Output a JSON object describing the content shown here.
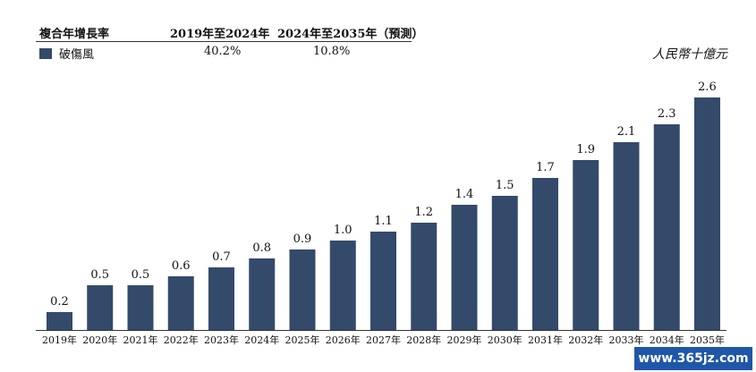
{
  "table": {
    "headers": [
      "複合年增長率",
      "2019年至2024年",
      "2024年至2035年（預測）"
    ],
    "rows": [
      {
        "label": "破傷風",
        "values": [
          "40.2%",
          "10.8%"
        ]
      }
    ]
  },
  "unit": "人民幣十億元",
  "watermark": "www.365jz.com",
  "colors": {
    "bar": "#344a6b"
  },
  "chart_data": {
    "type": "bar",
    "categories": [
      "2019年",
      "2020年",
      "2021年",
      "2022年",
      "2023年",
      "2024年",
      "2025年",
      "2026年",
      "2027年",
      "2028年",
      "2029年",
      "2030年",
      "2031年",
      "2032年",
      "2033年",
      "2034年",
      "2035年"
    ],
    "series": [
      {
        "name": "破傷風",
        "values": [
          0.2,
          0.5,
          0.5,
          0.6,
          0.7,
          0.8,
          0.9,
          1.0,
          1.1,
          1.2,
          1.4,
          1.5,
          1.7,
          1.9,
          2.1,
          2.3,
          2.6
        ]
      }
    ],
    "data_labels": [
      "0.2",
      "0.5",
      "0.5",
      "0.6",
      "0.7",
      "0.8",
      "0.9",
      "1.0",
      "1.1",
      "1.2",
      "1.4",
      "1.5",
      "1.7",
      "1.9",
      "2.1",
      "2.3",
      "2.6"
    ],
    "ylim": [
      0,
      2.6
    ],
    "grid": false
  }
}
